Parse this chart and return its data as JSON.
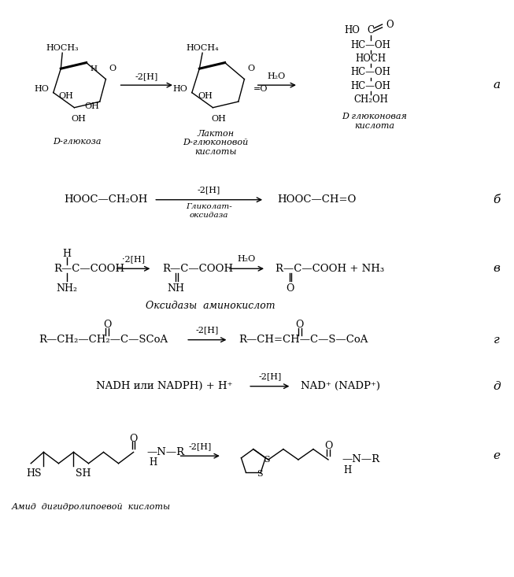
{
  "bg_color": "#ffffff",
  "fig_width": 6.53,
  "fig_height": 7.33,
  "sections": {
    "a": {
      "glucose_label": "D-глюкоза",
      "arrow1": "-2[H]",
      "lactone_label1": "Лактон",
      "lactone_label2": "D-глюконовой",
      "lactone_label3": "кислоты",
      "arrow2": "H₂O",
      "acid_label1": "D глюконовая",
      "acid_label2": "кислота",
      "side_label": "а"
    },
    "b": {
      "left": "HOOC—CH₂OH",
      "arrow": "-2[H]",
      "arrow_sub1": "Гликолат-",
      "arrow_sub2": "оксидаза",
      "right": "HOOC—CH=O",
      "side_label": "б"
    },
    "v": {
      "left1": "R—C—COOH",
      "left_h": "H",
      "left_nh2": "NH₂",
      "arrow1": "·2[H]",
      "mid": "R—C—COOH",
      "mid_nh": "NH",
      "arrow2": "H₂O",
      "right": "R—C—COOH + NH₃",
      "right_o": "O",
      "caption": "Оксидазы  аминокислот",
      "side_label": "в"
    },
    "g": {
      "left": "R—CH₂—CH₂—C—SCoA",
      "left_o": "O",
      "arrow": "-2[H]",
      "right": "R—CH=CH—C—S—CoA",
      "right_o": "O",
      "side_label": "г"
    },
    "d": {
      "left": "NADH или NADPH) + H⁺",
      "arrow": "-2[H]",
      "right": "NAD⁺ (NADP⁺)",
      "side_label": "д"
    },
    "e": {
      "arrow": "-2[H]",
      "label1": "Амид  дигидролипоевой  кислоты",
      "side_label": "е"
    }
  }
}
